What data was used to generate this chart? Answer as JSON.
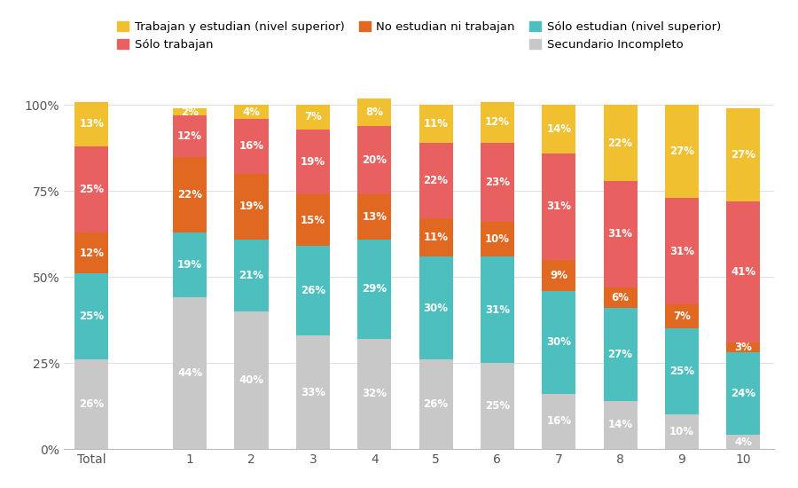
{
  "categories": [
    "Total",
    "1",
    "2",
    "3",
    "4",
    "5",
    "6",
    "7",
    "8",
    "9",
    "10"
  ],
  "series": {
    "Secundario Incompleto": [
      26,
      44,
      40,
      33,
      32,
      26,
      25,
      16,
      14,
      10,
      4
    ],
    "Sólo estudian (nivel superior)": [
      25,
      19,
      21,
      26,
      29,
      30,
      31,
      30,
      27,
      25,
      24
    ],
    "No estudian ni trabajan": [
      12,
      22,
      19,
      15,
      13,
      11,
      10,
      9,
      6,
      7,
      3
    ],
    "Sólo trabajan": [
      25,
      12,
      16,
      19,
      20,
      22,
      23,
      31,
      31,
      31,
      41
    ],
    "Trabajan y estudian (nivel superior)": [
      13,
      2,
      4,
      7,
      8,
      11,
      12,
      14,
      22,
      27,
      27
    ]
  },
  "colors": {
    "Secundario Incompleto": "#c8c8c8",
    "Sólo estudian (nivel superior)": "#4dbfbf",
    "No estudian ni trabajan": "#e06820",
    "Sólo trabajan": "#e86060",
    "Trabajan y estudian (nivel superior)": "#f0c030"
  },
  "legend_row1": [
    "Trabajan y estudian (nivel superior)",
    "Sólo trabajan",
    "No estudian ni trabajan"
  ],
  "legend_row2": [
    "Sólo estudian (nivel superior)",
    "Secundario Incompleto"
  ],
  "series_order": [
    "Secundario Incompleto",
    "Sólo estudian (nivel superior)",
    "No estudian ni trabajan",
    "Sólo trabajan",
    "Trabajan y estudian (nivel superior)"
  ],
  "x_positions": [
    0,
    1.6,
    2.6,
    3.6,
    4.6,
    5.6,
    6.6,
    7.6,
    8.6,
    9.6,
    10.6
  ],
  "bar_width": 0.55,
  "ylim": [
    0,
    105
  ],
  "ytick_labels": [
    "0%",
    "25%",
    "50%",
    "75%",
    "100%"
  ],
  "ytick_values": [
    0,
    25,
    50,
    75,
    100
  ],
  "background_color": "#ffffff",
  "grid_color": "#e0e0e0",
  "text_color": "#ffffff",
  "label_fontsize": 8.5,
  "min_label_pct": 2
}
